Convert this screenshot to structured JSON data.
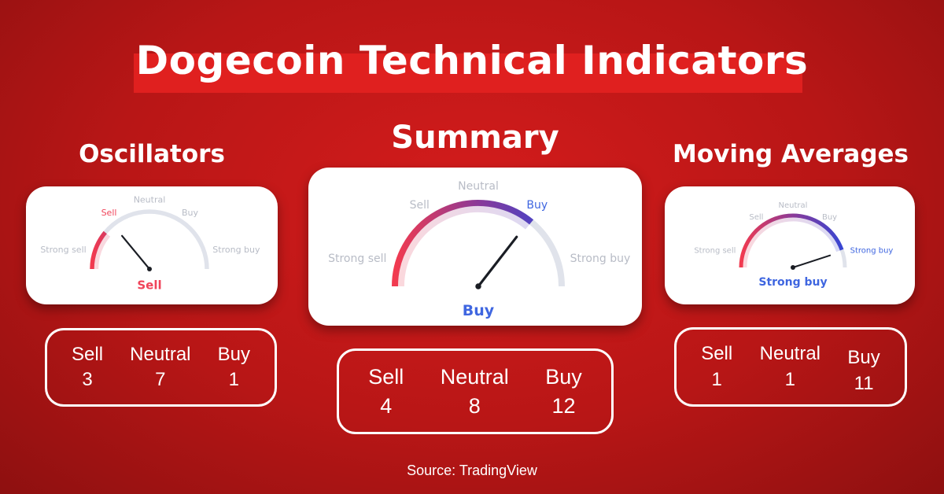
{
  "title": "Dogecoin Technical Indicators",
  "source": "Source: TradingView",
  "labels": {
    "strong_sell": "Strong sell",
    "sell": "Sell",
    "neutral": "Neutral",
    "buy": "Buy",
    "strong_buy": "Strong buy"
  },
  "colors": {
    "sell": "#f0445a",
    "buy": "#3f66e0",
    "inactive_label": "#b8bcc6",
    "track": "#e0e3eb",
    "needle": "#1a1d24"
  },
  "gauges": [
    {
      "heading": "Oscillators",
      "result": "Sell",
      "result_color": "#f0445a",
      "active_label": "sell",
      "needle_level": 0.28,
      "fill_level": 0.22,
      "counts": {
        "sell_label": "Sell",
        "sell": "3",
        "neutral_label": "Neutral",
        "neutral": "7",
        "buy_label": "Buy",
        "buy": "1"
      }
    },
    {
      "heading": "Summary",
      "result": "Buy",
      "result_color": "#3f66e0",
      "active_label": "buy",
      "needle_level": 0.71,
      "fill_level": 0.72,
      "counts": {
        "sell_label": "Sell",
        "sell": "4",
        "neutral_label": "Neutral",
        "neutral": "8",
        "buy_label": "Buy",
        "buy": "12"
      }
    },
    {
      "heading": "Moving Averages",
      "result": "Strong buy",
      "result_color": "#3f66e0",
      "active_label": "strong_buy",
      "needle_level": 0.9,
      "fill_level": 0.89,
      "counts": {
        "sell_label": "Sell",
        "sell": "1",
        "neutral_label": "Neutral",
        "neutral": "1",
        "buy_label": "Buy",
        "buy": "11"
      }
    }
  ]
}
